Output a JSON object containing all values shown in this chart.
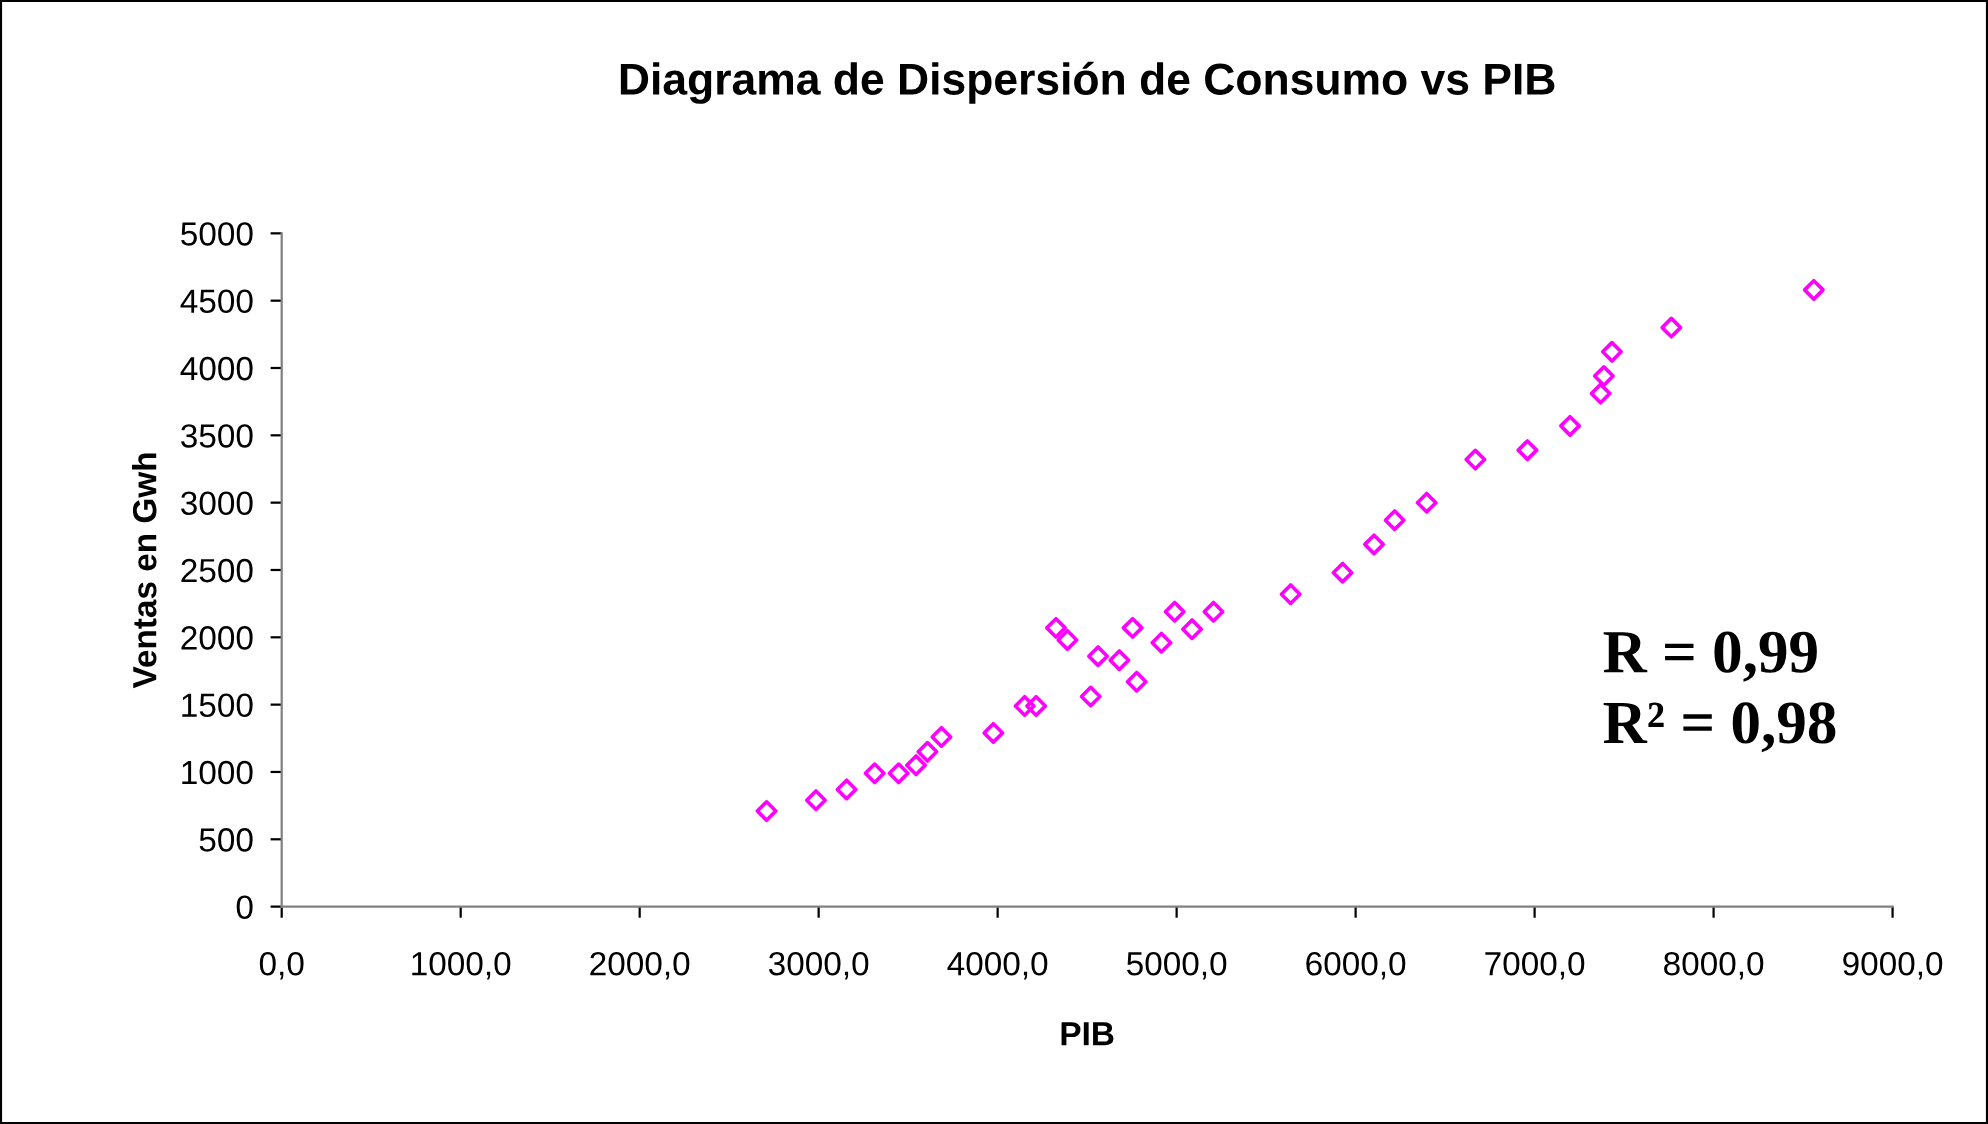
{
  "chart_data": {
    "type": "scatter",
    "title": "Diagrama de Dispersión de Consumo vs PIB",
    "xlabel": "PIB",
    "ylabel": "Ventas en Gwh",
    "x": [
      2709,
      2985,
      3156,
      3313,
      3447,
      3544,
      3608,
      3686,
      3976,
      4151,
      4215,
      4326,
      4390,
      4520,
      4561,
      4680,
      4754,
      4777,
      4915,
      4989,
      5086,
      5206,
      5637,
      5927,
      6103,
      6218,
      6397,
      6669,
      6960,
      7198,
      7369,
      7387,
      7432,
      7764,
      8560
    ],
    "series": [
      {
        "color": "#ff00ff",
        "values": [
          710,
          790,
          870,
          990,
          990,
          1050,
          1150,
          1260,
          1290,
          1490,
          1490,
          2070,
          1980,
          1560,
          1860,
          1830,
          2070,
          1670,
          1960,
          2190,
          2060,
          2190,
          2320,
          2480,
          2690,
          2870,
          3000,
          3320,
          3390,
          3570,
          3810,
          3940,
          4120,
          4300,
          4580
        ]
      }
    ],
    "xlim": [
      0,
      9000
    ],
    "ylim": [
      0,
      5000
    ],
    "xticks": [
      {
        "value": 0,
        "label": "0,0"
      },
      {
        "value": 1000,
        "label": "1000,0"
      },
      {
        "value": 2000,
        "label": "2000,0"
      },
      {
        "value": 3000,
        "label": "3000,0"
      },
      {
        "value": 4000,
        "label": "4000,0"
      },
      {
        "value": 5000,
        "label": "5000,0"
      },
      {
        "value": 6000,
        "label": "6000,0"
      },
      {
        "value": 7000,
        "label": "7000,0"
      },
      {
        "value": 8000,
        "label": "8000,0"
      },
      {
        "value": 9000,
        "label": "9000,0"
      }
    ],
    "yticks": [
      0,
      500,
      1000,
      1500,
      2000,
      2500,
      3000,
      3500,
      4000,
      4500,
      5000
    ],
    "marker": "diamond",
    "grid": false,
    "legend": false,
    "annotations": [
      "R = 0,99",
      "R² = 0,98"
    ]
  }
}
